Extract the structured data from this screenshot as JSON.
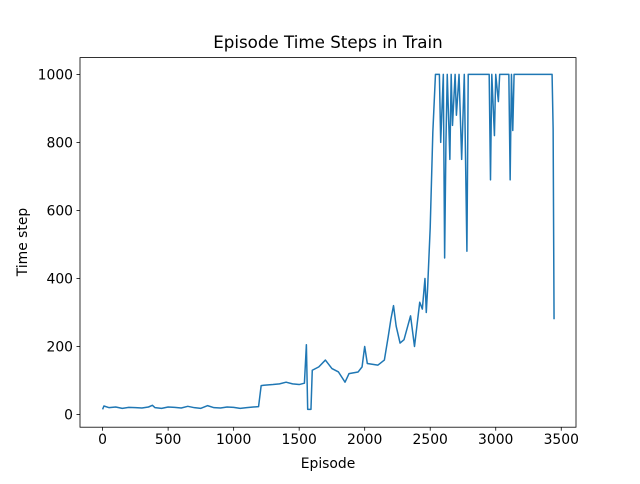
{
  "chart_data": {
    "type": "line",
    "title": "Episode Time Steps in Train",
    "x_label": "Episode",
    "y_label": "Time step",
    "color": "#1f77b4",
    "x": [
      0,
      10,
      50,
      100,
      150,
      200,
      250,
      300,
      350,
      380,
      400,
      450,
      500,
      550,
      600,
      650,
      700,
      750,
      800,
      850,
      900,
      950,
      1000,
      1050,
      1100,
      1150,
      1190,
      1210,
      1230,
      1300,
      1350,
      1400,
      1450,
      1500,
      1540,
      1555,
      1565,
      1590,
      1600,
      1650,
      1700,
      1750,
      1800,
      1850,
      1880,
      1950,
      1980,
      2000,
      2020,
      2100,
      2150,
      2180,
      2200,
      2220,
      2240,
      2270,
      2300,
      2350,
      2380,
      2420,
      2440,
      2460,
      2470,
      2480,
      2500,
      2520,
      2540,
      2570,
      2580,
      2600,
      2610,
      2620,
      2630,
      2650,
      2660,
      2670,
      2690,
      2700,
      2720,
      2740,
      2760,
      2780,
      2790,
      2800,
      2950,
      2960,
      2970,
      2990,
      3000,
      3020,
      3030,
      3050,
      3100,
      3110,
      3120,
      3130,
      3140,
      3430,
      3438,
      3445
    ],
    "values": [
      15,
      25,
      20,
      22,
      18,
      21,
      20,
      19,
      22,
      27,
      20,
      18,
      22,
      21,
      19,
      24,
      20,
      18,
      26,
      20,
      19,
      22,
      21,
      18,
      20,
      22,
      23,
      85,
      86,
      88,
      90,
      95,
      90,
      88,
      92,
      205,
      15,
      15,
      130,
      140,
      160,
      135,
      125,
      95,
      120,
      125,
      140,
      200,
      150,
      145,
      160,
      230,
      280,
      320,
      260,
      210,
      220,
      290,
      200,
      330,
      310,
      400,
      300,
      370,
      550,
      830,
      1000,
      1000,
      800,
      1000,
      460,
      800,
      1000,
      750,
      1000,
      850,
      1000,
      880,
      1000,
      750,
      1000,
      480,
      1000,
      1000,
      1000,
      690,
      1000,
      820,
      1000,
      920,
      1000,
      1000,
      1000,
      690,
      1000,
      835,
      1000,
      1000,
      840,
      280
    ],
    "xlim": [
      -172.5,
      3612.5
    ],
    "ylim": [
      -37.4,
      1049.4
    ],
    "xticks": [
      0,
      500,
      1000,
      1500,
      2000,
      2500,
      3000,
      3500
    ],
    "yticks": [
      0,
      200,
      400,
      600,
      800,
      1000
    ]
  }
}
